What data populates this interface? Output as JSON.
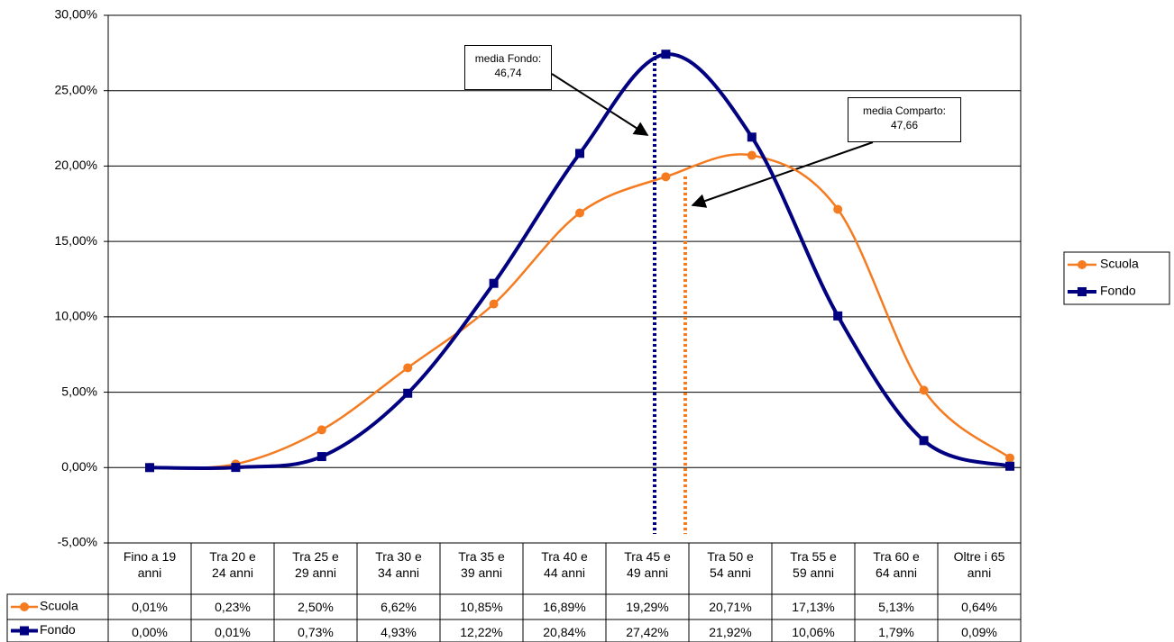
{
  "chart_data": {
    "type": "line",
    "categories": [
      "Fino a 19\nanni",
      "Tra 20 e\n24 anni",
      "Tra 25 e\n29 anni",
      "Tra 30 e\n34 anni",
      "Tra 35 e\n39 anni",
      "Tra 40 e\n44 anni",
      "Tra 45 e\n49 anni",
      "Tra 50 e\n54 anni",
      "Tra 55 e\n59 anni",
      "Tra 60 e\n64 anni",
      "Oltre i 65\nanni"
    ],
    "series": [
      {
        "name": "Scuola",
        "color": "#f47b20",
        "marker": "circle",
        "values": [
          0.01,
          0.23,
          2.5,
          6.62,
          10.85,
          16.89,
          19.29,
          20.71,
          17.13,
          5.13,
          0.64
        ],
        "value_labels": [
          "0,01%",
          "0,23%",
          "2,50%",
          "6,62%",
          "10,85%",
          "16,89%",
          "19,29%",
          "20,71%",
          "17,13%",
          "5,13%",
          "0,64%"
        ]
      },
      {
        "name": "Fondo",
        "color": "#000080",
        "marker": "square",
        "values": [
          0.0,
          0.01,
          0.73,
          4.93,
          12.22,
          20.84,
          27.42,
          21.92,
          10.06,
          1.79,
          0.09
        ],
        "value_labels": [
          "0,00%",
          "0,01%",
          "0,73%",
          "4,93%",
          "12,22%",
          "20,84%",
          "27,42%",
          "21,92%",
          "10,06%",
          "1,79%",
          "0,09%"
        ]
      }
    ],
    "ylim": [
      -5,
      30
    ],
    "yticks": [
      {
        "value": -5,
        "label": "-5,00%"
      },
      {
        "value": 0,
        "label": "0,00%"
      },
      {
        "value": 5,
        "label": "5,00%"
      },
      {
        "value": 10,
        "label": "10,00%"
      },
      {
        "value": 15,
        "label": "15,00%"
      },
      {
        "value": 20,
        "label": "20,00%"
      },
      {
        "value": 25,
        "label": "25,00%"
      },
      {
        "value": 30,
        "label": "30,00%"
      }
    ],
    "grid": true,
    "annotations": [
      "media Fondo:\n46,74",
      "media Comparto:\n47,66"
    ]
  }
}
